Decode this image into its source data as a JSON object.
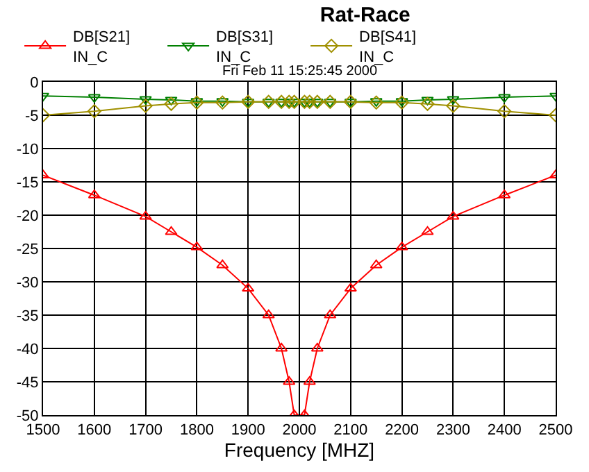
{
  "chart_data": {
    "type": "line",
    "title": "Rat-Race",
    "subtitle": "Fri Feb 11 15:25:45 2000",
    "xlabel": "Frequency [MHZ]",
    "x": [
      1500,
      1600,
      1700,
      1750,
      1800,
      1850,
      1900,
      1940,
      1965,
      1980,
      1990,
      2010,
      2020,
      2035,
      2060,
      2100,
      2150,
      2200,
      2250,
      2300,
      2400,
      2500
    ],
    "series": [
      {
        "name": "DB[S21]\nIN_C",
        "color": "#ff0000",
        "marker": "triangle",
        "values": [
          -14,
          -17,
          -20.2,
          -22.5,
          -24.8,
          -27.5,
          -31,
          -35,
          -40,
          -45,
          -50,
          -50,
          -45,
          -40,
          -35,
          -31,
          -27.5,
          -24.8,
          -22.5,
          -20.2,
          -17,
          -14
        ]
      },
      {
        "name": "DB[S31]\nIN_C",
        "color": "#008000",
        "marker": "triangle-down",
        "values": [
          -2.1,
          -2.3,
          -2.6,
          -2.7,
          -2.9,
          -2.9,
          -3,
          -3,
          -3,
          -3,
          -3,
          -3,
          -3,
          -3,
          -3,
          -3,
          -2.9,
          -2.9,
          -2.7,
          -2.6,
          -2.3,
          -2.1
        ]
      },
      {
        "name": "DB[S41]\nIN_C",
        "color": "#a09000",
        "marker": "diamond",
        "values": [
          -5,
          -4.4,
          -3.6,
          -3.3,
          -3.1,
          -3.1,
          -3,
          -3,
          -3,
          -3,
          -3,
          -3,
          -3,
          -3,
          -3,
          -3,
          -3.1,
          -3.1,
          -3.3,
          -3.6,
          -4.4,
          -5
        ]
      }
    ],
    "xlim": [
      1500,
      2500
    ],
    "xticks": [
      1500,
      1600,
      1700,
      1800,
      1900,
      2000,
      2100,
      2200,
      2300,
      2400,
      2500
    ],
    "ylim": [
      -50,
      0
    ],
    "yticks": [
      -50,
      -45,
      -40,
      -35,
      -30,
      -25,
      -20,
      -15,
      -10,
      -5,
      0
    ],
    "grid": true,
    "legend": "top left"
  }
}
